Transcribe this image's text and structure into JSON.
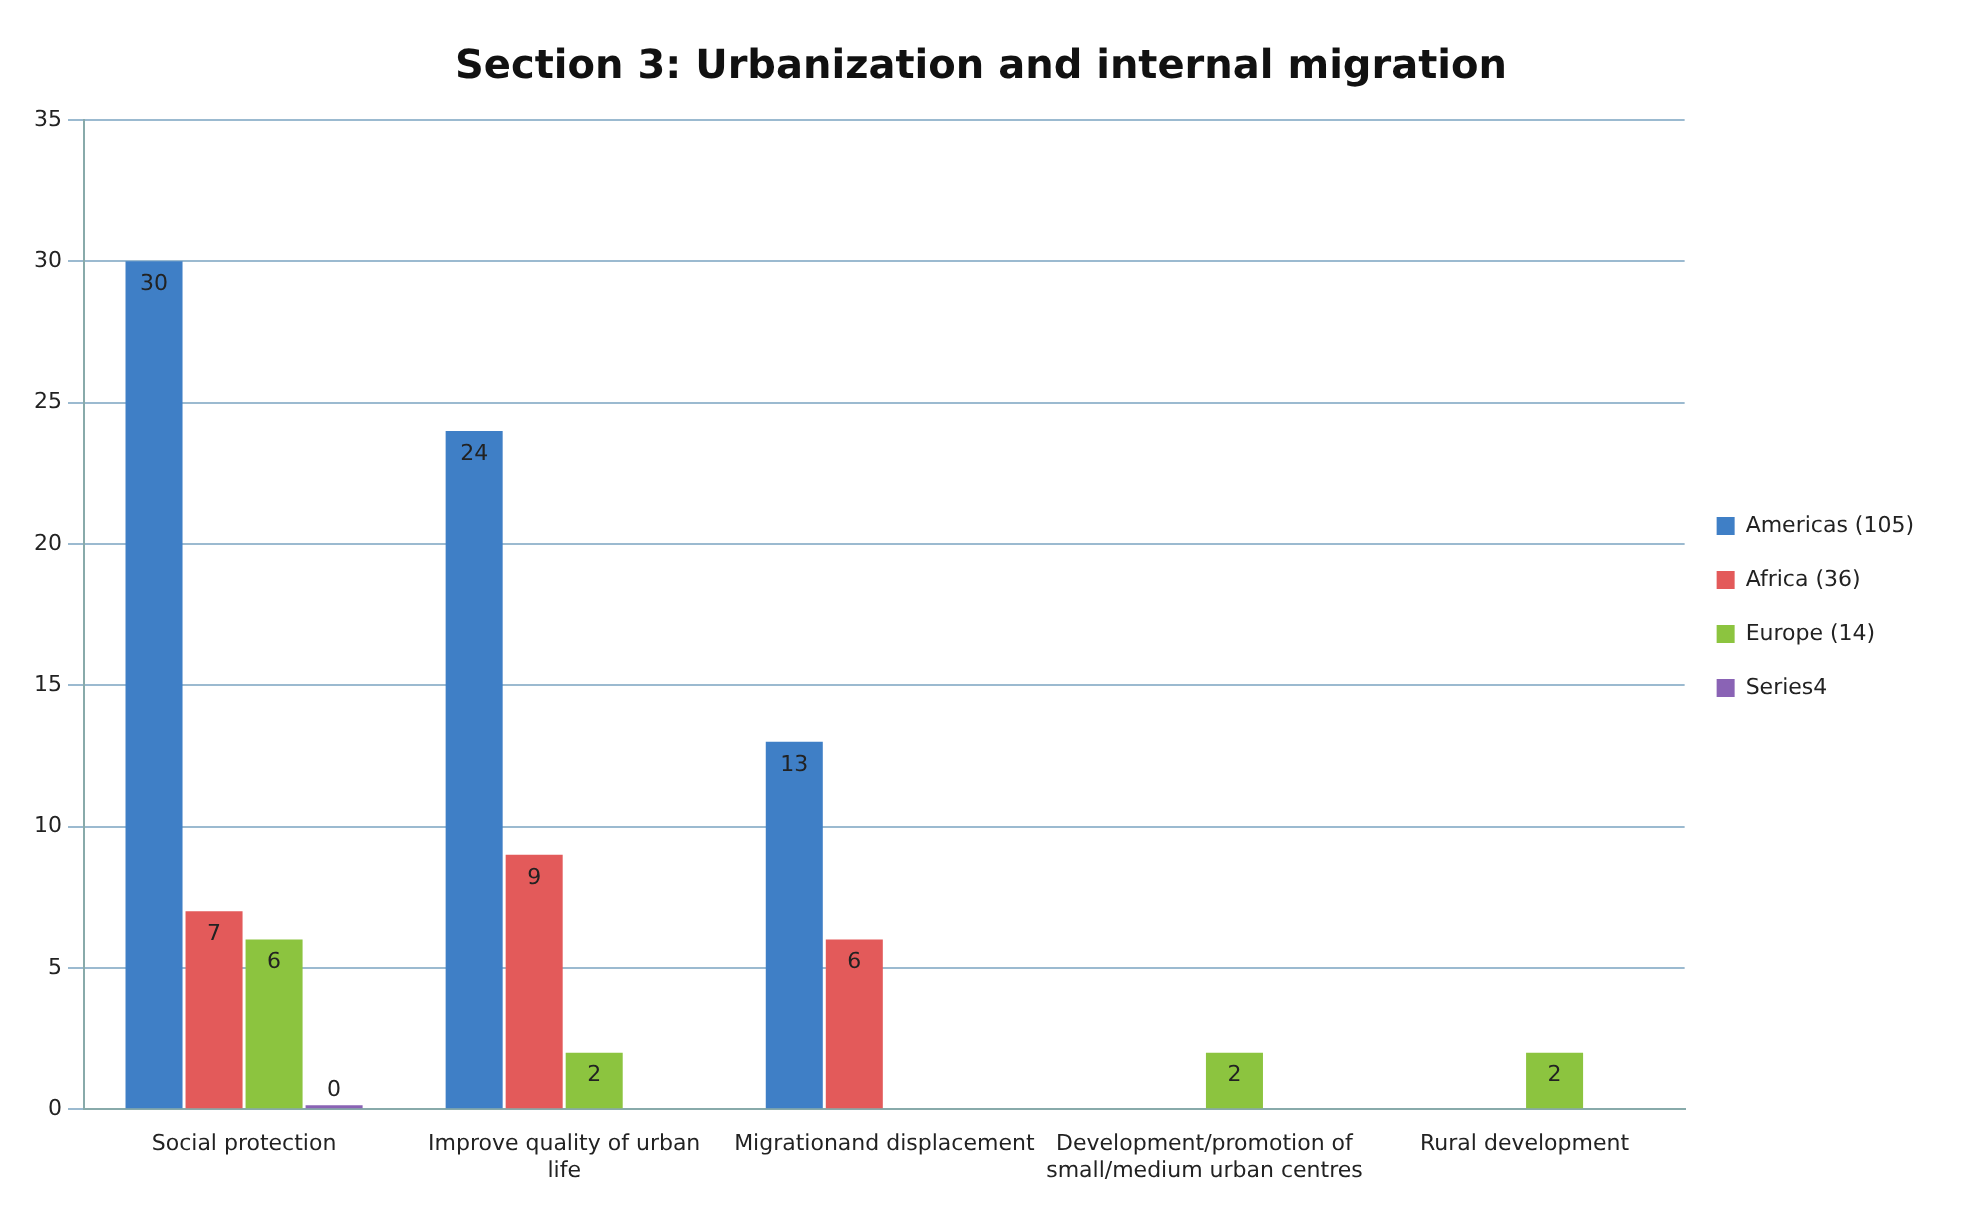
{
  "chart_data": {
    "type": "bar",
    "title": "Section 3: Urbanization and internal migration",
    "categories": [
      "Social protection",
      "Improve quality of urban life",
      "Migrationand displacement",
      "Development/promotion of small/medium urban centres",
      "Rural development"
    ],
    "series": [
      {
        "name": "Americas (105)",
        "color": "#3f7fc6",
        "values": [
          30,
          24,
          13,
          null,
          null
        ]
      },
      {
        "name": "Africa (36)",
        "color": "#e35a5a",
        "values": [
          7,
          9,
          6,
          null,
          null
        ]
      },
      {
        "name": "Europe (14)",
        "color": "#8cc43f",
        "values": [
          6,
          2,
          null,
          2,
          2
        ]
      },
      {
        "name": "Series4",
        "color": "#8a63b5",
        "values": [
          0,
          null,
          null,
          null,
          null
        ]
      }
    ],
    "ylim": [
      0,
      35
    ],
    "yticks": [
      0,
      5,
      10,
      15,
      20,
      25,
      30,
      35
    ],
    "grid": "y",
    "legend": "right",
    "data_labels": true
  }
}
